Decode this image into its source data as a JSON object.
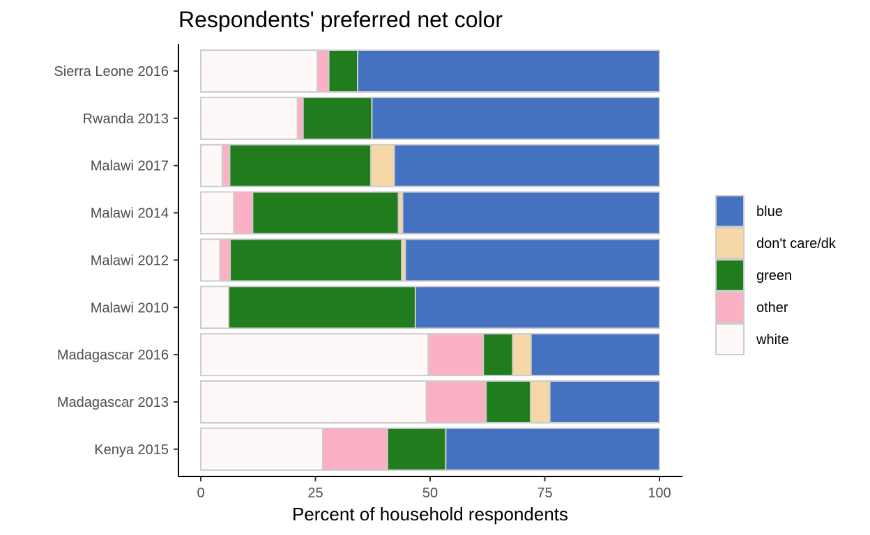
{
  "chart_data": {
    "type": "bar",
    "orientation": "horizontal",
    "stacked": true,
    "title": "Respondents' preferred net color",
    "xlabel": "Percent of household respondents",
    "ylabel": "",
    "xlim": [
      0,
      100
    ],
    "x_ticks": [
      0,
      25,
      50,
      75,
      100
    ],
    "x_tick_labels": [
      "0",
      "25",
      "50",
      "75",
      "100"
    ],
    "grid": false,
    "legend_position": "right",
    "categories": [
      "Kenya 2015",
      "Madagascar 2013",
      "Madagascar 2016",
      "Malawi 2010",
      "Malawi 2012",
      "Malawi 2014",
      "Malawi 2017",
      "Rwanda 2013",
      "Sierra Leone 2016"
    ],
    "series": [
      {
        "name": "white",
        "color": "#fff8f8",
        "values": [
          26.6,
          49.2,
          49.6,
          6.1,
          4.2,
          7.2,
          4.7,
          21.1,
          25.4
        ]
      },
      {
        "name": "other",
        "color": "#fbb1c3",
        "values": [
          14.1,
          13.0,
          12.0,
          0.0,
          2.2,
          4.1,
          1.6,
          1.2,
          2.5
        ]
      },
      {
        "name": "green",
        "color": "#217c1e",
        "values": [
          12.7,
          9.7,
          6.4,
          40.7,
          37.4,
          31.8,
          30.8,
          15.0,
          6.3
        ]
      },
      {
        "name": "don't care/dk",
        "color": "#f5d8a5",
        "values": [
          0.0,
          4.2,
          4.0,
          0.0,
          0.8,
          0.9,
          5.1,
          0.0,
          0.0
        ]
      },
      {
        "name": "blue",
        "color": "#4472c0",
        "values": [
          46.6,
          23.9,
          28.0,
          53.2,
          55.4,
          56.0,
          57.8,
          62.7,
          65.8
        ]
      }
    ],
    "legend_order": [
      "blue",
      "don't care/dk",
      "green",
      "other",
      "white"
    ],
    "bar_outline_color": "#cccccc"
  }
}
